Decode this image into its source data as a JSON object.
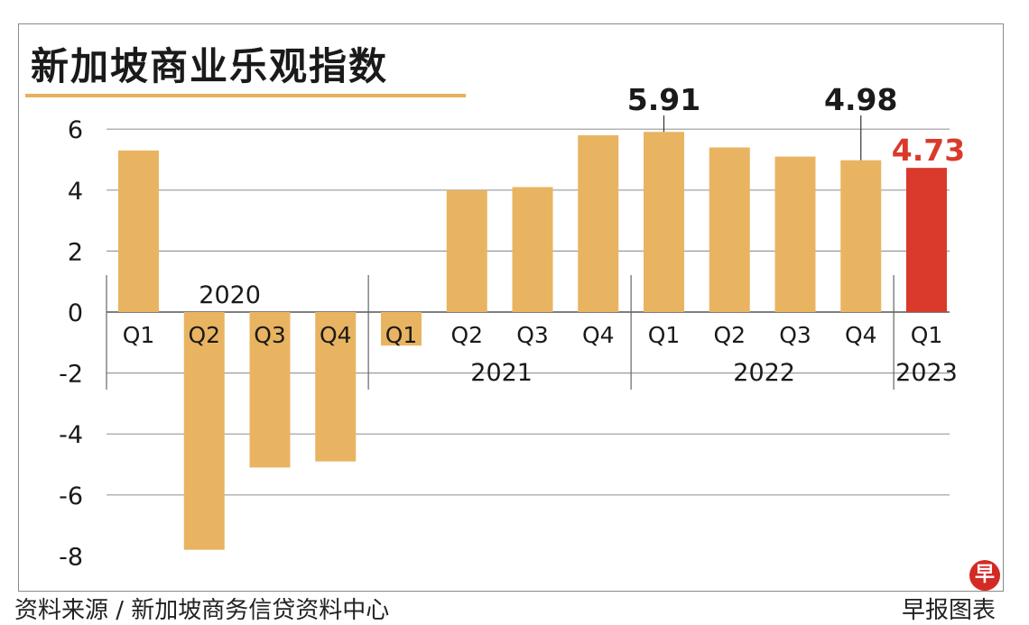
{
  "chart_data": {
    "type": "bar",
    "title": "新加坡商业乐观指数",
    "categories": [
      "Q1",
      "Q2",
      "Q3",
      "Q4",
      "Q1",
      "Q2",
      "Q3",
      "Q4",
      "Q1",
      "Q2",
      "Q3",
      "Q4",
      "Q1"
    ],
    "years": [
      "2020",
      "2021",
      "2022",
      "2023"
    ],
    "year_of_category": [
      "2020",
      "2020",
      "2020",
      "2020",
      "2021",
      "2021",
      "2021",
      "2021",
      "2022",
      "2022",
      "2022",
      "2022",
      "2023"
    ],
    "values": [
      5.3,
      -7.8,
      -5.1,
      -4.9,
      -1.1,
      4.0,
      4.1,
      5.8,
      5.91,
      5.4,
      5.1,
      4.98,
      4.73
    ],
    "labeled_points": [
      {
        "index": 8,
        "label": "5.91",
        "color": "#1a1a1a"
      },
      {
        "index": 11,
        "label": "4.98",
        "color": "#1a1a1a"
      },
      {
        "index": 12,
        "label": "4.73",
        "color": "#d93a2b"
      }
    ],
    "yticks": [
      6,
      4,
      2,
      0,
      -2,
      -4,
      -6,
      -8
    ],
    "ylim": [
      -8.5,
      6.5
    ],
    "bar_color": "#e9b461",
    "highlight_color": "#d93a2b",
    "highlight_index": 12,
    "grid": true,
    "xlabel": "",
    "ylabel": ""
  },
  "footer": {
    "source": "资料来源 / 新加坡商务信贷资料中心",
    "brand": "早报图表",
    "logo_char": "早"
  }
}
